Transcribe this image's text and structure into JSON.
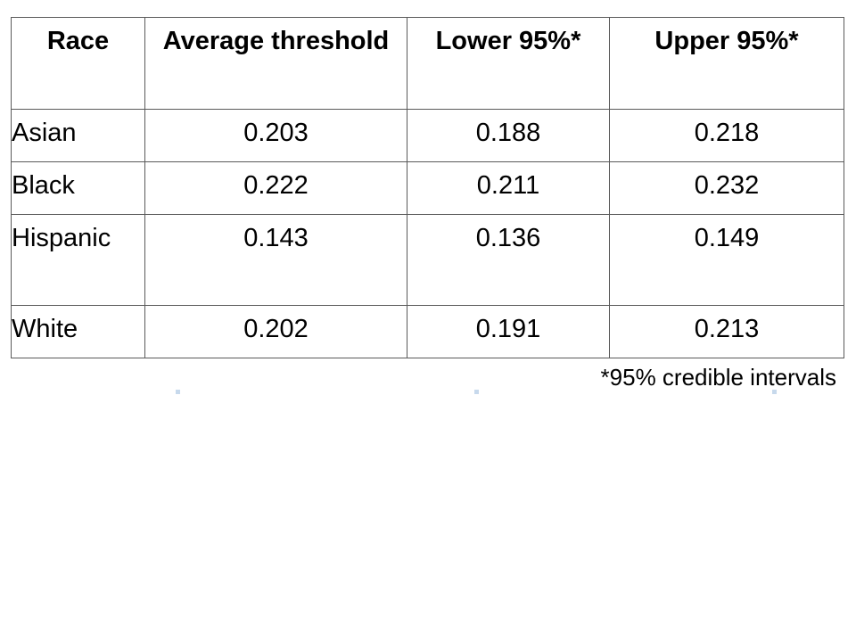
{
  "table": {
    "headers": [
      "Race",
      "Average threshold",
      "Lower 95%*",
      "Upper 95%*"
    ],
    "rows": [
      {
        "race": "Asian",
        "average": "0.203",
        "lower": "0.188",
        "upper": "0.218"
      },
      {
        "race": "Black",
        "average": "0.222",
        "lower": "0.211",
        "upper": "0.232"
      },
      {
        "race": "Hispanic",
        "average": "0.143",
        "lower": "0.136",
        "upper": "0.149"
      },
      {
        "race": "White",
        "average": "0.202",
        "lower": "0.191",
        "upper": "0.213"
      }
    ]
  },
  "footnote": "*95% credible intervals"
}
